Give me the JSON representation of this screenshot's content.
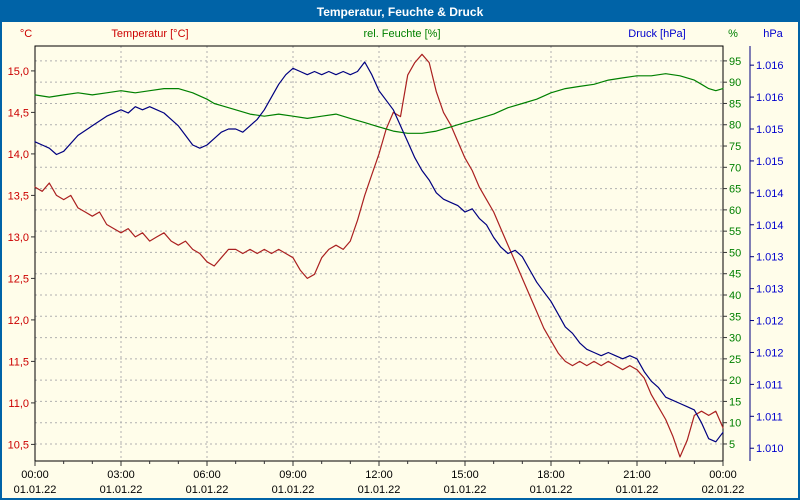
{
  "window": {
    "title": "Temperatur, Feuchte & Druck"
  },
  "colors": {
    "frame": "#0063a7",
    "background": "#fffdea",
    "grid": "#b0b0b0",
    "plot_border": "#000000",
    "tick_mark": "#333333",
    "x_label": "#000000",
    "temperature_line": "#aa2020",
    "temperature_text": "#cc0000",
    "humidity_line": "#008000",
    "humidity_text": "#008000",
    "pressure_line": "#000080",
    "pressure_text": "#0000cc"
  },
  "chart_data": {
    "type": "line",
    "title": "Temperatur, Feuchte & Druck",
    "grid": "dashed, vertical every 3h, horizontal every 5% rel. humidity",
    "legend_position": "top headers per axis",
    "x_axis": {
      "range_hours": [
        0,
        24
      ],
      "tick_hours": [
        0,
        3,
        6,
        9,
        12,
        15,
        18,
        21,
        24
      ],
      "tick_labels": [
        "00:00",
        "03:00",
        "06:00",
        "09:00",
        "12:00",
        "15:00",
        "18:00",
        "21:00",
        "00:00"
      ],
      "date_labels": [
        "01.01.22",
        "01.01.22",
        "01.01.22",
        "01.01.22",
        "01.01.22",
        "01.01.22",
        "01.01.22",
        "01.01.22",
        "02.01.22"
      ]
    },
    "axes": {
      "temperature": {
        "header": "Temperatur [°C]",
        "unit": "°C",
        "side": "left",
        "range": [
          10.3,
          15.3
        ],
        "ticks": [
          10.5,
          11.0,
          11.5,
          12.0,
          12.5,
          13.0,
          13.5,
          14.0,
          14.5,
          15.0
        ],
        "tick_labels": [
          "10,5",
          "11,0",
          "11,5",
          "12,0",
          "12,5",
          "13,0",
          "13,5",
          "14,0",
          "14,5",
          "15,0"
        ]
      },
      "humidity": {
        "header": "rel. Feuchte [%]",
        "unit": "%",
        "side": "right",
        "range": [
          1,
          98.5
        ],
        "ticks": [
          5,
          10,
          15,
          20,
          25,
          30,
          35,
          40,
          45,
          50,
          55,
          60,
          65,
          70,
          75,
          80,
          85,
          90,
          95
        ],
        "tick_labels": [
          "5",
          "10",
          "15",
          "20",
          "25",
          "30",
          "35",
          "40",
          "45",
          "50",
          "55",
          "60",
          "65",
          "70",
          "75",
          "80",
          "85",
          "90",
          "95"
        ]
      },
      "pressure": {
        "header": "Druck [hPa]",
        "unit": "hPa",
        "side": "far-right",
        "range": [
          1009.8,
          1016.3
        ],
        "ticks": [
          1010.0,
          1010.5,
          1011.0,
          1011.5,
          1012.0,
          1012.5,
          1013.0,
          1013.5,
          1014.0,
          1014.5,
          1015.0,
          1015.5,
          1016.0
        ],
        "tick_labels": [
          "1.010",
          "1.011",
          "1.011",
          "1.012",
          "1.012",
          "1.013",
          "1.013",
          "1.014",
          "1.014",
          "1.015",
          "1.015",
          "1.016",
          "1.016"
        ]
      }
    },
    "series": [
      {
        "name": "Temperatur",
        "unit": "°C",
        "axis": "temperature",
        "color_key": "temperature_line",
        "points": [
          [
            0,
            13.6
          ],
          [
            0.25,
            13.55
          ],
          [
            0.5,
            13.65
          ],
          [
            0.75,
            13.5
          ],
          [
            1,
            13.45
          ],
          [
            1.25,
            13.5
          ],
          [
            1.5,
            13.35
          ],
          [
            1.75,
            13.3
          ],
          [
            2,
            13.25
          ],
          [
            2.25,
            13.3
          ],
          [
            2.5,
            13.15
          ],
          [
            2.75,
            13.1
          ],
          [
            3,
            13.05
          ],
          [
            3.25,
            13.1
          ],
          [
            3.5,
            13.0
          ],
          [
            3.75,
            13.05
          ],
          [
            4,
            12.95
          ],
          [
            4.25,
            13.0
          ],
          [
            4.5,
            13.05
          ],
          [
            4.75,
            12.95
          ],
          [
            5,
            12.9
          ],
          [
            5.25,
            12.95
          ],
          [
            5.5,
            12.85
          ],
          [
            5.75,
            12.8
          ],
          [
            6,
            12.7
          ],
          [
            6.25,
            12.65
          ],
          [
            6.5,
            12.75
          ],
          [
            6.75,
            12.85
          ],
          [
            7,
            12.85
          ],
          [
            7.25,
            12.8
          ],
          [
            7.5,
            12.85
          ],
          [
            7.75,
            12.8
          ],
          [
            8,
            12.85
          ],
          [
            8.25,
            12.8
          ],
          [
            8.5,
            12.85
          ],
          [
            8.75,
            12.8
          ],
          [
            9,
            12.75
          ],
          [
            9.25,
            12.6
          ],
          [
            9.5,
            12.5
          ],
          [
            9.75,
            12.55
          ],
          [
            10,
            12.75
          ],
          [
            10.25,
            12.85
          ],
          [
            10.5,
            12.9
          ],
          [
            10.75,
            12.85
          ],
          [
            11,
            12.95
          ],
          [
            11.25,
            13.2
          ],
          [
            11.5,
            13.5
          ],
          [
            11.75,
            13.75
          ],
          [
            12,
            14.0
          ],
          [
            12.25,
            14.3
          ],
          [
            12.5,
            14.5
          ],
          [
            12.75,
            14.45
          ],
          [
            13,
            14.95
          ],
          [
            13.25,
            15.1
          ],
          [
            13.5,
            15.2
          ],
          [
            13.75,
            15.1
          ],
          [
            14,
            14.75
          ],
          [
            14.25,
            14.5
          ],
          [
            14.5,
            14.35
          ],
          [
            14.75,
            14.15
          ],
          [
            15,
            13.95
          ],
          [
            15.25,
            13.8
          ],
          [
            15.5,
            13.6
          ],
          [
            15.75,
            13.45
          ],
          [
            16,
            13.3
          ],
          [
            16.25,
            13.1
          ],
          [
            16.5,
            12.9
          ],
          [
            16.75,
            12.7
          ],
          [
            17,
            12.5
          ],
          [
            17.25,
            12.3
          ],
          [
            17.5,
            12.1
          ],
          [
            17.75,
            11.9
          ],
          [
            18,
            11.75
          ],
          [
            18.25,
            11.6
          ],
          [
            18.5,
            11.5
          ],
          [
            18.75,
            11.45
          ],
          [
            19,
            11.5
          ],
          [
            19.25,
            11.45
          ],
          [
            19.5,
            11.5
          ],
          [
            19.75,
            11.45
          ],
          [
            20,
            11.5
          ],
          [
            20.25,
            11.45
          ],
          [
            20.5,
            11.4
          ],
          [
            20.75,
            11.45
          ],
          [
            21,
            11.4
          ],
          [
            21.25,
            11.3
          ],
          [
            21.5,
            11.1
          ],
          [
            21.75,
            10.95
          ],
          [
            22,
            10.8
          ],
          [
            22.25,
            10.6
          ],
          [
            22.5,
            10.35
          ],
          [
            22.75,
            10.55
          ],
          [
            23,
            10.85
          ],
          [
            23.25,
            10.9
          ],
          [
            23.5,
            10.85
          ],
          [
            23.75,
            10.9
          ],
          [
            24,
            10.7
          ]
        ]
      },
      {
        "name": "rel. Feuchte",
        "unit": "%",
        "axis": "humidity",
        "color_key": "humidity_line",
        "points": [
          [
            0,
            87
          ],
          [
            0.5,
            86.5
          ],
          [
            1,
            87
          ],
          [
            1.5,
            87.5
          ],
          [
            2,
            87
          ],
          [
            2.5,
            87.5
          ],
          [
            3,
            88
          ],
          [
            3.5,
            87.5
          ],
          [
            4,
            88
          ],
          [
            4.5,
            88.5
          ],
          [
            5,
            88.5
          ],
          [
            5.5,
            87.5
          ],
          [
            6,
            86
          ],
          [
            6.25,
            85
          ],
          [
            6.5,
            84.5
          ],
          [
            7,
            83.5
          ],
          [
            7.5,
            82.5
          ],
          [
            8,
            82
          ],
          [
            8.5,
            82.5
          ],
          [
            9,
            82
          ],
          [
            9.5,
            81.5
          ],
          [
            10,
            82
          ],
          [
            10.5,
            82.5
          ],
          [
            11,
            81.5
          ],
          [
            11.5,
            80.5
          ],
          [
            12,
            79.5
          ],
          [
            12.5,
            78.5
          ],
          [
            13,
            78
          ],
          [
            13.5,
            78
          ],
          [
            14,
            78.5
          ],
          [
            14.5,
            79.5
          ],
          [
            15,
            80.5
          ],
          [
            15.5,
            81.5
          ],
          [
            16,
            82.5
          ],
          [
            16.5,
            84
          ],
          [
            17,
            85
          ],
          [
            17.5,
            86
          ],
          [
            18,
            87.5
          ],
          [
            18.5,
            88.5
          ],
          [
            19,
            89
          ],
          [
            19.5,
            89.5
          ],
          [
            20,
            90.5
          ],
          [
            20.5,
            91
          ],
          [
            21,
            91.5
          ],
          [
            21.5,
            91.5
          ],
          [
            22,
            92
          ],
          [
            22.5,
            91.5
          ],
          [
            23,
            90.5
          ],
          [
            23.25,
            89.5
          ],
          [
            23.5,
            88.5
          ],
          [
            23.75,
            88
          ],
          [
            24,
            88.5
          ]
        ]
      },
      {
        "name": "Druck",
        "unit": "hPa",
        "axis": "pressure",
        "color_key": "pressure_line",
        "points": [
          [
            0,
            1014.8
          ],
          [
            0.25,
            1014.75
          ],
          [
            0.5,
            1014.7
          ],
          [
            0.75,
            1014.6
          ],
          [
            1,
            1014.65
          ],
          [
            1.5,
            1014.9
          ],
          [
            2,
            1015.05
          ],
          [
            2.5,
            1015.2
          ],
          [
            3,
            1015.3
          ],
          [
            3.25,
            1015.25
          ],
          [
            3.5,
            1015.35
          ],
          [
            3.75,
            1015.3
          ],
          [
            4,
            1015.35
          ],
          [
            4.25,
            1015.3
          ],
          [
            4.5,
            1015.25
          ],
          [
            4.75,
            1015.15
          ],
          [
            5,
            1015.05
          ],
          [
            5.25,
            1014.9
          ],
          [
            5.5,
            1014.75
          ],
          [
            5.75,
            1014.7
          ],
          [
            6,
            1014.75
          ],
          [
            6.25,
            1014.85
          ],
          [
            6.5,
            1014.95
          ],
          [
            6.75,
            1015.0
          ],
          [
            7,
            1015.0
          ],
          [
            7.25,
            1014.95
          ],
          [
            7.5,
            1015.05
          ],
          [
            7.75,
            1015.15
          ],
          [
            8,
            1015.3
          ],
          [
            8.25,
            1015.5
          ],
          [
            8.5,
            1015.7
          ],
          [
            8.75,
            1015.85
          ],
          [
            9,
            1015.95
          ],
          [
            9.25,
            1015.9
          ],
          [
            9.5,
            1015.85
          ],
          [
            9.75,
            1015.9
          ],
          [
            10,
            1015.85
          ],
          [
            10.25,
            1015.9
          ],
          [
            10.5,
            1015.85
          ],
          [
            10.75,
            1015.9
          ],
          [
            11,
            1015.85
          ],
          [
            11.25,
            1015.9
          ],
          [
            11.5,
            1016.05
          ],
          [
            11.75,
            1015.85
          ],
          [
            12,
            1015.6
          ],
          [
            12.25,
            1015.45
          ],
          [
            12.5,
            1015.3
          ],
          [
            12.75,
            1015.05
          ],
          [
            13,
            1014.8
          ],
          [
            13.25,
            1014.55
          ],
          [
            13.5,
            1014.35
          ],
          [
            13.75,
            1014.2
          ],
          [
            14,
            1014.0
          ],
          [
            14.25,
            1013.9
          ],
          [
            14.5,
            1013.85
          ],
          [
            14.75,
            1013.8
          ],
          [
            15,
            1013.7
          ],
          [
            15.25,
            1013.75
          ],
          [
            15.5,
            1013.6
          ],
          [
            15.75,
            1013.5
          ],
          [
            16,
            1013.3
          ],
          [
            16.25,
            1013.15
          ],
          [
            16.5,
            1013.05
          ],
          [
            16.75,
            1013.1
          ],
          [
            17,
            1013.0
          ],
          [
            17.25,
            1012.8
          ],
          [
            17.5,
            1012.6
          ],
          [
            17.75,
            1012.45
          ],
          [
            18,
            1012.3
          ],
          [
            18.25,
            1012.1
          ],
          [
            18.5,
            1011.9
          ],
          [
            18.75,
            1011.8
          ],
          [
            19,
            1011.65
          ],
          [
            19.25,
            1011.55
          ],
          [
            19.5,
            1011.5
          ],
          [
            19.75,
            1011.45
          ],
          [
            20,
            1011.5
          ],
          [
            20.25,
            1011.45
          ],
          [
            20.5,
            1011.4
          ],
          [
            20.75,
            1011.45
          ],
          [
            21,
            1011.4
          ],
          [
            21.25,
            1011.2
          ],
          [
            21.5,
            1011.05
          ],
          [
            21.75,
            1010.95
          ],
          [
            22,
            1010.8
          ],
          [
            22.25,
            1010.75
          ],
          [
            22.5,
            1010.7
          ],
          [
            22.75,
            1010.65
          ],
          [
            23,
            1010.6
          ],
          [
            23.25,
            1010.4
          ],
          [
            23.5,
            1010.15
          ],
          [
            23.75,
            1010.1
          ],
          [
            24,
            1010.25
          ]
        ]
      }
    ]
  }
}
